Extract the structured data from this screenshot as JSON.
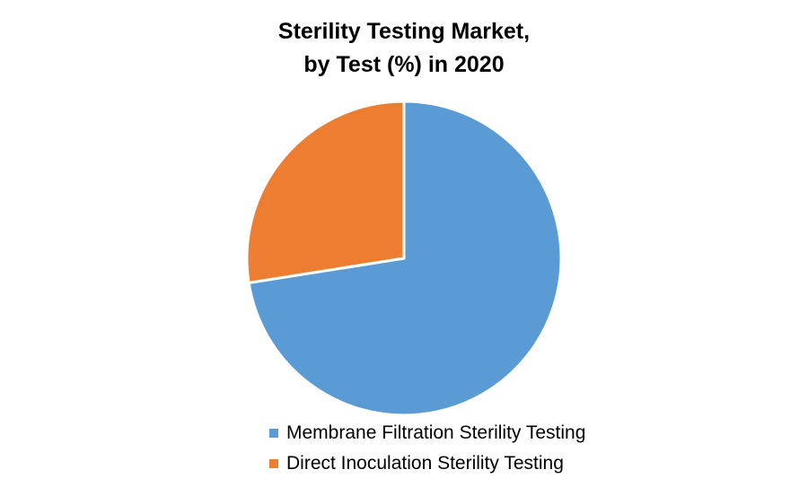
{
  "chart_data": {
    "type": "pie",
    "title_lines": [
      "Sterility Testing Market,",
      "by Test (%) in 2020"
    ],
    "title": "Sterility Testing Market, by Test (%) in 2020",
    "categories": [
      "Membrane Filtration Sterility Testing",
      "Direct Inoculation Sterility Testing"
    ],
    "values": [
      72.5,
      27.5
    ],
    "colors": [
      "#5b9bd5",
      "#ed7d31"
    ],
    "start_angle_deg": 0,
    "direction": "clockwise",
    "legend": {
      "position": "bottom",
      "entries": [
        "Membrane Filtration Sterility Testing",
        "Direct Inoculation Sterility Testing"
      ]
    }
  }
}
